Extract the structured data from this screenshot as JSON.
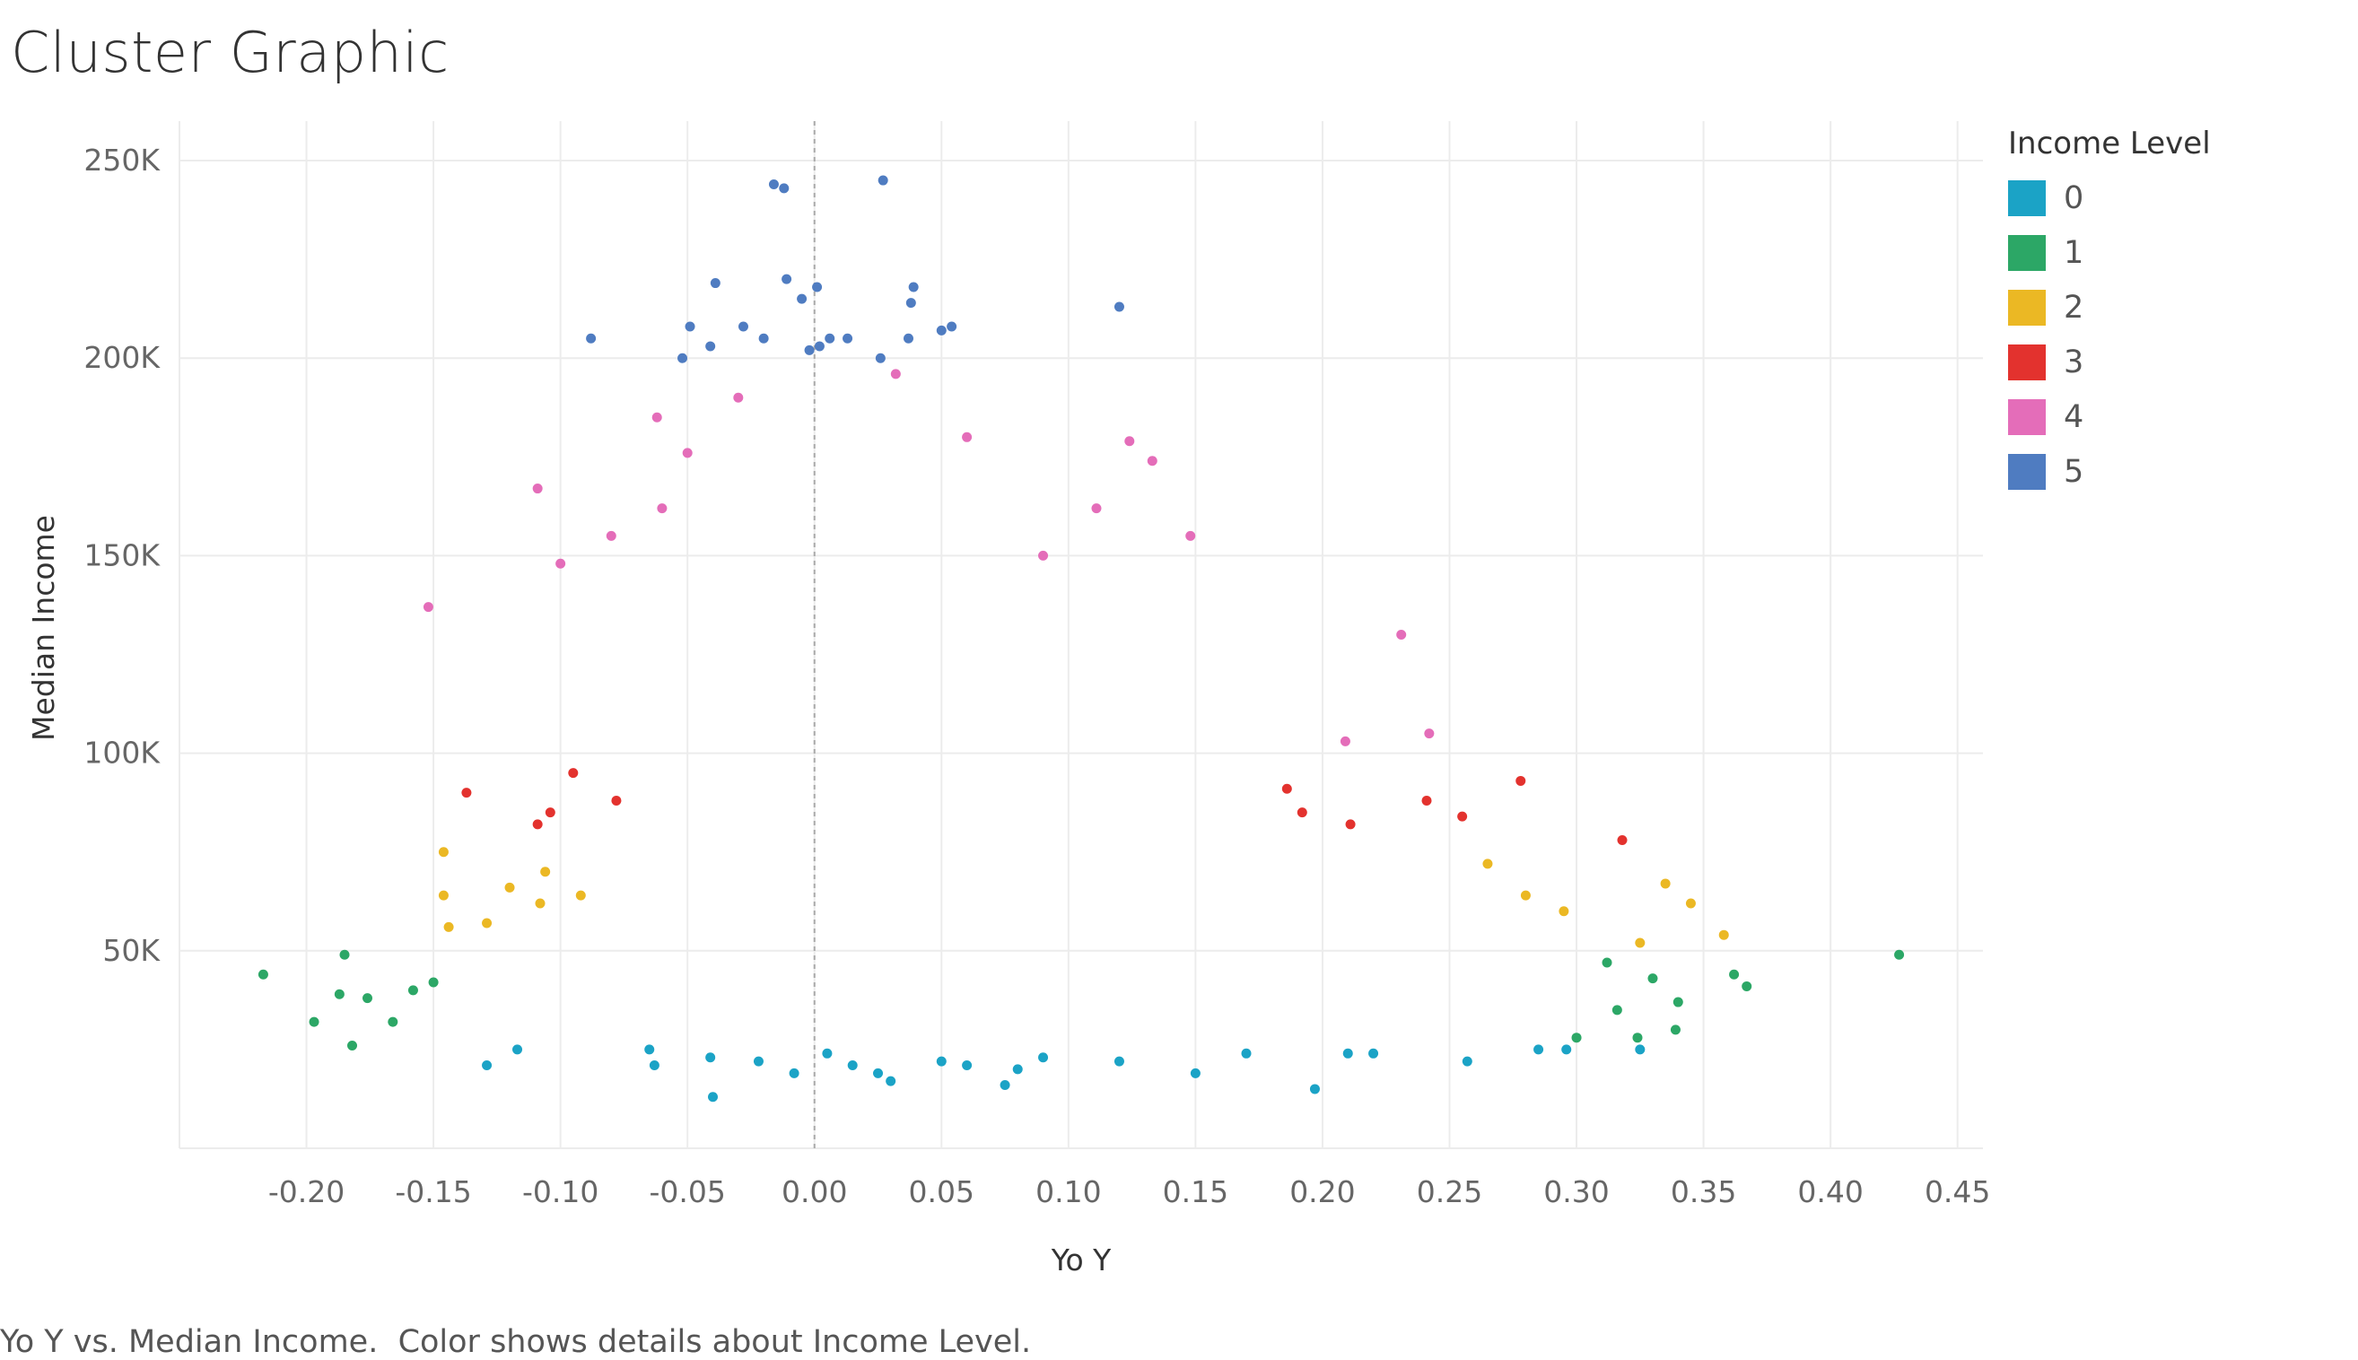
{
  "chart_data": {
    "type": "scatter",
    "title": "Cluster Graphic",
    "xlabel": "Yo Y",
    "ylabel": "Median Income",
    "xlim": [
      -0.25,
      0.46
    ],
    "ylim": [
      0,
      260000
    ],
    "x_ticks": [
      -0.2,
      -0.15,
      -0.1,
      -0.05,
      0.0,
      0.05,
      0.1,
      0.15,
      0.2,
      0.25,
      0.3,
      0.35,
      0.4,
      0.45
    ],
    "x_tick_labels": [
      "-0.20",
      "-0.15",
      "-0.10",
      "-0.05",
      "0.00",
      "0.05",
      "0.10",
      "0.15",
      "0.20",
      "0.25",
      "0.30",
      "0.35",
      "0.40",
      "0.45"
    ],
    "y_ticks": [
      50000,
      100000,
      150000,
      200000,
      250000
    ],
    "y_tick_labels": [
      "50K",
      "100K",
      "150K",
      "200K",
      "250K"
    ],
    "grid": true,
    "reference_line_x": 0,
    "legend": {
      "title": "Income Level",
      "placement": "right",
      "items": [
        {
          "label": "0",
          "color": "#1BA3C6"
        },
        {
          "label": "1",
          "color": "#2CA766"
        },
        {
          "label": "2",
          "color": "#EBB824"
        },
        {
          "label": "3",
          "color": "#E3322E"
        },
        {
          "label": "4",
          "color": "#E46DB9"
        },
        {
          "label": "5",
          "color": "#4F7CC1"
        }
      ]
    },
    "series": [
      {
        "name": "5",
        "color": "#4F7CC1",
        "points": [
          [
            -0.016,
            244000
          ],
          [
            -0.012,
            243000
          ],
          [
            0.027,
            245000
          ],
          [
            -0.039,
            219000
          ],
          [
            -0.011,
            220000
          ],
          [
            0.001,
            218000
          ],
          [
            0.039,
            218000
          ],
          [
            0.12,
            213000
          ],
          [
            -0.005,
            215000
          ],
          [
            0.038,
            214000
          ],
          [
            -0.049,
            208000
          ],
          [
            -0.028,
            208000
          ],
          [
            0.05,
            207000
          ],
          [
            0.054,
            208000
          ],
          [
            -0.088,
            205000
          ],
          [
            -0.02,
            205000
          ],
          [
            0.006,
            205000
          ],
          [
            0.013,
            205000
          ],
          [
            0.037,
            205000
          ],
          [
            -0.041,
            203000
          ],
          [
            -0.002,
            202000
          ],
          [
            0.002,
            203000
          ],
          [
            0.026,
            200000
          ],
          [
            -0.052,
            200000
          ]
        ]
      },
      {
        "name": "4",
        "color": "#E46DB9",
        "points": [
          [
            -0.152,
            137000
          ],
          [
            -0.109,
            167000
          ],
          [
            -0.1,
            148000
          ],
          [
            -0.062,
            185000
          ],
          [
            -0.06,
            162000
          ],
          [
            0.111,
            162000
          ],
          [
            0.124,
            179000
          ],
          [
            0.133,
            174000
          ],
          [
            0.148,
            155000
          ],
          [
            0.231,
            130000
          ],
          [
            0.242,
            105000
          ],
          [
            0.209,
            103000
          ],
          [
            -0.08,
            155000
          ],
          [
            -0.05,
            176000
          ],
          [
            0.032,
            196000
          ],
          [
            -0.03,
            190000
          ],
          [
            0.06,
            180000
          ],
          [
            0.09,
            150000
          ]
        ]
      },
      {
        "name": "3",
        "color": "#E3322E",
        "points": [
          [
            -0.137,
            90000
          ],
          [
            -0.109,
            82000
          ],
          [
            -0.104,
            85000
          ],
          [
            0.278,
            93000
          ],
          [
            0.318,
            78000
          ],
          [
            0.241,
            88000
          ],
          [
            0.255,
            84000
          ],
          [
            0.186,
            91000
          ],
          [
            0.192,
            85000
          ],
          [
            0.211,
            82000
          ],
          [
            -0.095,
            95000
          ],
          [
            -0.078,
            88000
          ]
        ]
      },
      {
        "name": "2",
        "color": "#EBB824",
        "points": [
          [
            -0.146,
            75000
          ],
          [
            -0.146,
            64000
          ],
          [
            -0.144,
            56000
          ],
          [
            -0.129,
            57000
          ],
          [
            -0.12,
            66000
          ],
          [
            -0.106,
            70000
          ],
          [
            -0.108,
            62000
          ],
          [
            -0.092,
            64000
          ],
          [
            0.358,
            54000
          ],
          [
            0.345,
            62000
          ],
          [
            0.335,
            67000
          ],
          [
            0.325,
            52000
          ],
          [
            0.295,
            60000
          ],
          [
            0.265,
            72000
          ],
          [
            0.28,
            64000
          ]
        ]
      },
      {
        "name": "1",
        "color": "#2CA766",
        "points": [
          [
            -0.217,
            44000
          ],
          [
            -0.197,
            32000
          ],
          [
            -0.187,
            39000
          ],
          [
            -0.185,
            49000
          ],
          [
            -0.182,
            26000
          ],
          [
            -0.176,
            38000
          ],
          [
            -0.166,
            32000
          ],
          [
            -0.158,
            40000
          ],
          [
            -0.15,
            42000
          ],
          [
            0.427,
            49000
          ],
          [
            0.362,
            44000
          ],
          [
            0.367,
            41000
          ],
          [
            0.34,
            37000
          ],
          [
            0.339,
            30000
          ],
          [
            0.33,
            43000
          ],
          [
            0.324,
            28000
          ],
          [
            0.316,
            35000
          ],
          [
            0.3,
            28000
          ],
          [
            0.312,
            47000
          ]
        ]
      },
      {
        "name": "0",
        "color": "#1BA3C6",
        "points": [
          [
            -0.129,
            21000
          ],
          [
            -0.117,
            25000
          ],
          [
            -0.065,
            25000
          ],
          [
            -0.063,
            21000
          ],
          [
            -0.041,
            23000
          ],
          [
            -0.04,
            13000
          ],
          [
            -0.022,
            22000
          ],
          [
            -0.008,
            19000
          ],
          [
            0.005,
            24000
          ],
          [
            0.015,
            21000
          ],
          [
            0.025,
            19000
          ],
          [
            0.03,
            17000
          ],
          [
            0.05,
            22000
          ],
          [
            0.06,
            21000
          ],
          [
            0.075,
            16000
          ],
          [
            0.08,
            20000
          ],
          [
            0.09,
            23000
          ],
          [
            0.12,
            22000
          ],
          [
            0.15,
            19000
          ],
          [
            0.17,
            24000
          ],
          [
            0.197,
            15000
          ],
          [
            0.21,
            24000
          ],
          [
            0.22,
            24000
          ],
          [
            0.257,
            22000
          ],
          [
            0.285,
            25000
          ],
          [
            0.296,
            25000
          ],
          [
            0.325,
            25000
          ]
        ]
      }
    ]
  },
  "caption": "Yo Y vs. Median Income.  Color shows details about Income Level."
}
